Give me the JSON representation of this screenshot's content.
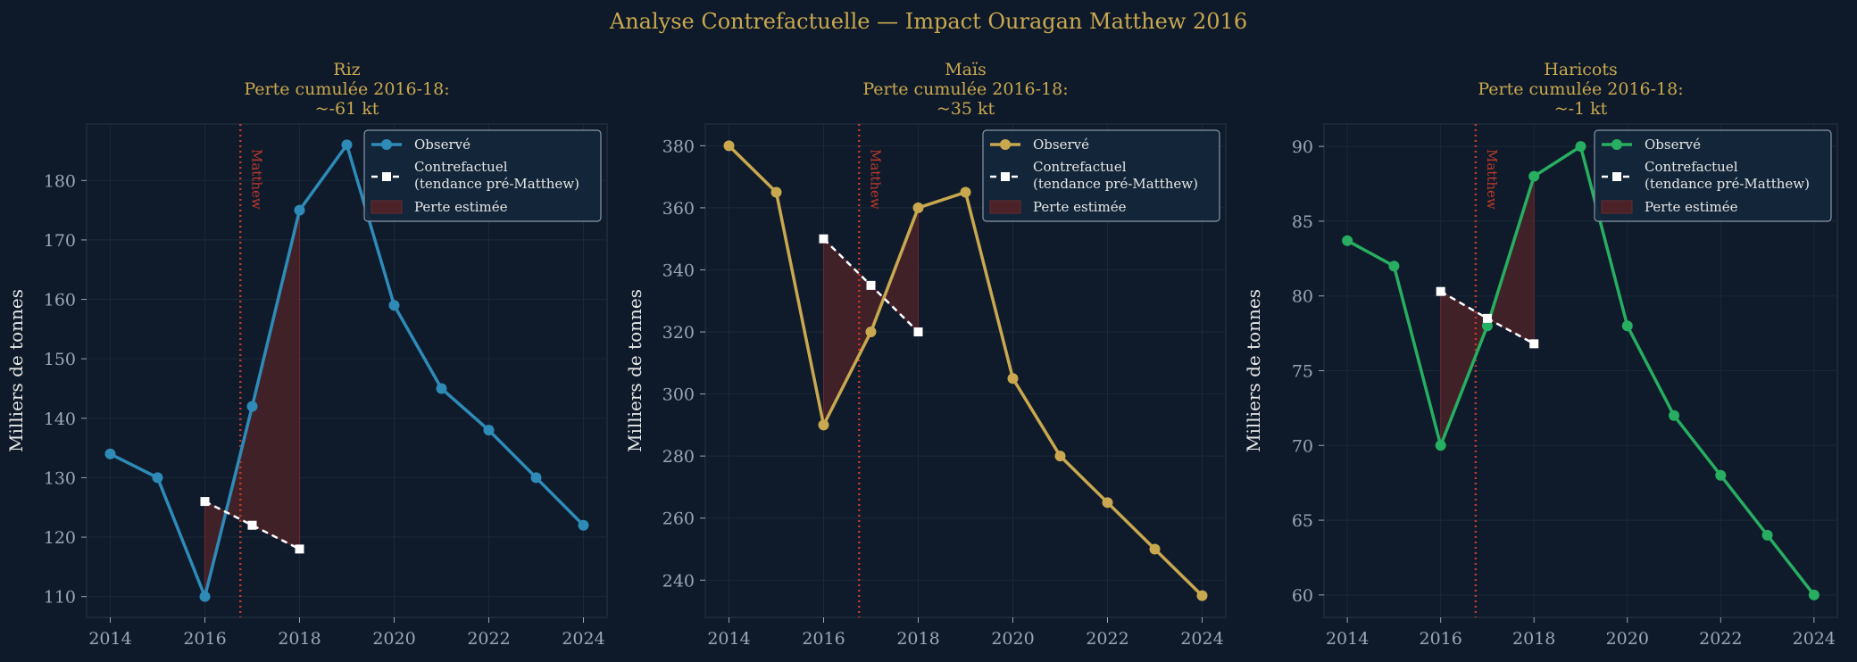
{
  "suptitle": "Analyse Contrefactuelle — Impact Ouragan Matthew 2016",
  "colors": {
    "background": "#0e1a2a",
    "plot_background": "#0f1b2b",
    "title": "#c9a84f",
    "marker_line": "#c0392b",
    "loss_fill": "#4a2228",
    "counterfactual": "#ffffff",
    "tick": "#9aa7b8",
    "label": "#e6e6e6"
  },
  "event_label": "Matthew",
  "event_x": 2016.75,
  "chart_data": [
    {
      "type": "line",
      "title_lines": [
        "Riz",
        "Perte cumulée 2016-18:",
        "~-61 kt"
      ],
      "ylabel": "Milliers de tonnes",
      "xlim": [
        2013.5,
        2024.5
      ],
      "ylim": [
        106.5,
        189.5
      ],
      "xticks": [
        2014,
        2016,
        2018,
        2020,
        2022,
        2024
      ],
      "yticks": [
        110,
        120,
        130,
        140,
        150,
        160,
        170,
        180
      ],
      "color": "#2e8bb8",
      "legend": [
        "Observé",
        "Contrefactuel\n(tendance pré-Matthew)",
        "Perte estimée"
      ],
      "legend_position": "upper right",
      "observed": {
        "x": [
          2014,
          2015,
          2016,
          2017,
          2018,
          2019,
          2020,
          2021,
          2022,
          2023,
          2024
        ],
        "y": [
          134,
          130,
          110,
          142,
          175,
          186,
          159,
          145,
          138,
          130,
          122
        ]
      },
      "counterfactual": {
        "x": [
          2016,
          2017,
          2018
        ],
        "y": [
          126,
          122,
          118
        ]
      }
    },
    {
      "type": "line",
      "title_lines": [
        "Maïs",
        "Perte cumulée 2016-18:",
        "~35 kt"
      ],
      "ylabel": "Milliers de tonnes",
      "xlim": [
        2013.5,
        2024.5
      ],
      "ylim": [
        228,
        387
      ],
      "xticks": [
        2014,
        2016,
        2018,
        2020,
        2022,
        2024
      ],
      "yticks": [
        240,
        260,
        280,
        300,
        320,
        340,
        360,
        380
      ],
      "color": "#c9a84f",
      "legend": [
        "Observé",
        "Contrefactuel\n(tendance pré-Matthew)",
        "Perte estimée"
      ],
      "legend_position": "upper right",
      "observed": {
        "x": [
          2014,
          2015,
          2016,
          2017,
          2018,
          2019,
          2020,
          2021,
          2022,
          2023,
          2024
        ],
        "y": [
          380,
          365,
          290,
          320,
          360,
          365,
          305,
          280,
          265,
          250,
          235
        ]
      },
      "counterfactual": {
        "x": [
          2016,
          2017,
          2018
        ],
        "y": [
          350,
          335,
          320
        ]
      }
    },
    {
      "type": "line",
      "title_lines": [
        "Haricots",
        "Perte cumulée 2016-18:",
        "~-1 kt"
      ],
      "ylabel": "Milliers de tonnes",
      "xlim": [
        2013.5,
        2024.5
      ],
      "ylim": [
        58.5,
        91.5
      ],
      "xticks": [
        2014,
        2016,
        2018,
        2020,
        2022,
        2024
      ],
      "yticks": [
        60,
        65,
        70,
        75,
        80,
        85,
        90
      ],
      "color": "#27ae60",
      "legend": [
        "Observé",
        "Contrefactuel\n(tendance pré-Matthew)",
        "Perte estimée"
      ],
      "legend_position": "upper right",
      "observed": {
        "x": [
          2014,
          2015,
          2016,
          2017,
          2018,
          2019,
          2020,
          2021,
          2022,
          2023,
          2024
        ],
        "y": [
          83.7,
          82,
          70,
          78,
          88,
          90,
          78,
          72,
          68,
          64,
          60
        ]
      },
      "counterfactual": {
        "x": [
          2016,
          2017,
          2018
        ],
        "y": [
          80.3,
          78.5,
          76.8
        ]
      }
    }
  ]
}
